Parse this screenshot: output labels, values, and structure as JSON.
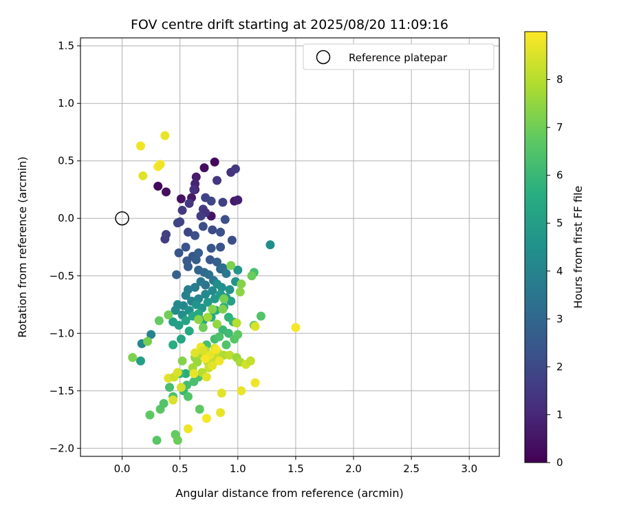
{
  "chart_data": {
    "type": "scatter",
    "title": "FOV centre drift starting at 2025/08/20 11:09:16",
    "xlabel": "Angular distance from reference (arcmin)",
    "ylabel": "Rotation from reference (arcmin)",
    "xlim": [
      -0.36,
      3.26
    ],
    "ylim": [
      -2.07,
      1.57
    ],
    "xticks": [
      0.0,
      0.5,
      1.0,
      1.5,
      2.0,
      2.5,
      3.0
    ],
    "xtick_labels": [
      "0.0",
      "0.5",
      "1.0",
      "1.5",
      "2.0",
      "2.5",
      "3.0"
    ],
    "yticks": [
      -2.0,
      -1.5,
      -1.0,
      -0.5,
      0.0,
      0.5,
      1.0,
      1.5
    ],
    "ytick_labels": [
      "−2.0",
      "−1.5",
      "−1.0",
      "−0.5",
      "0.0",
      "0.5",
      "1.0",
      "1.5"
    ],
    "grid": true,
    "legend": {
      "position": "top-right",
      "entries": [
        "Reference platepar"
      ]
    },
    "reference_point": {
      "x": 0.0,
      "y": 0.0
    },
    "colorbar": {
      "label": "Hours from first FF file",
      "range": [
        0,
        9
      ],
      "ticks": [
        0,
        1,
        2,
        3,
        4,
        5,
        6,
        7,
        8
      ],
      "tick_labels": [
        "0",
        "1",
        "2",
        "3",
        "4",
        "5",
        "6",
        "7",
        "8"
      ],
      "colormap": "viridis"
    },
    "points": [
      {
        "x": 0.31,
        "y": 0.28,
        "t": 0.2
      },
      {
        "x": 0.38,
        "y": 0.23,
        "t": 0.3
      },
      {
        "x": 0.71,
        "y": 0.44,
        "t": 0.3
      },
      {
        "x": 0.8,
        "y": 0.49,
        "t": 0.2
      },
      {
        "x": 0.51,
        "y": 0.17,
        "t": 0.4
      },
      {
        "x": 0.6,
        "y": 0.18,
        "t": 0.6
      },
      {
        "x": 0.63,
        "y": 0.25,
        "t": 0.5
      },
      {
        "x": 0.64,
        "y": 0.36,
        "t": 0.7
      },
      {
        "x": 0.77,
        "y": 0.02,
        "t": 0.5
      },
      {
        "x": 0.97,
        "y": 0.15,
        "t": 0.6
      },
      {
        "x": 1.0,
        "y": 0.16,
        "t": 0.8
      },
      {
        "x": 0.63,
        "y": 0.3,
        "t": 0.9
      },
      {
        "x": 0.94,
        "y": 0.4,
        "t": 1.3
      },
      {
        "x": 0.98,
        "y": 0.43,
        "t": 1.5
      },
      {
        "x": 0.82,
        "y": 0.33,
        "t": 1.4
      },
      {
        "x": 0.62,
        "y": 0.25,
        "t": 1.2
      },
      {
        "x": 0.58,
        "y": 0.13,
        "t": 1.4
      },
      {
        "x": 0.52,
        "y": 0.07,
        "t": 1.5
      },
      {
        "x": 0.7,
        "y": 0.08,
        "t": 1.6
      },
      {
        "x": 0.72,
        "y": 0.05,
        "t": 1.3
      },
      {
        "x": 0.68,
        "y": 0.02,
        "t": 1.6
      },
      {
        "x": 0.72,
        "y": 0.18,
        "t": 1.8
      },
      {
        "x": 0.77,
        "y": 0.15,
        "t": 1.9
      },
      {
        "x": 0.87,
        "y": 0.14,
        "t": 1.7
      },
      {
        "x": 0.5,
        "y": -0.03,
        "t": 1.9
      },
      {
        "x": 0.48,
        "y": -0.04,
        "t": 1.8
      },
      {
        "x": 0.37,
        "y": -0.18,
        "t": 1.6
      },
      {
        "x": 0.38,
        "y": -0.14,
        "t": 1.7
      },
      {
        "x": 0.57,
        "y": -0.12,
        "t": 1.9
      },
      {
        "x": 0.7,
        "y": -0.07,
        "t": 2.1
      },
      {
        "x": 0.78,
        "y": -0.1,
        "t": 2.0
      },
      {
        "x": 0.85,
        "y": -0.12,
        "t": 2.2
      },
      {
        "x": 0.89,
        "y": -0.01,
        "t": 2.2
      },
      {
        "x": 0.63,
        "y": -0.15,
        "t": 2.2
      },
      {
        "x": 0.95,
        "y": -0.19,
        "t": 2.1
      },
      {
        "x": 0.85,
        "y": -0.25,
        "t": 2.3
      },
      {
        "x": 0.77,
        "y": -0.26,
        "t": 2.4
      },
      {
        "x": 0.55,
        "y": -0.25,
        "t": 2.3
      },
      {
        "x": 0.49,
        "y": -0.3,
        "t": 2.4
      },
      {
        "x": 0.56,
        "y": -0.37,
        "t": 2.5
      },
      {
        "x": 0.57,
        "y": -0.42,
        "t": 2.6
      },
      {
        "x": 0.61,
        "y": -0.33,
        "t": 2.4
      },
      {
        "x": 0.64,
        "y": -0.36,
        "t": 2.6
      },
      {
        "x": 0.66,
        "y": -0.3,
        "t": 2.7
      },
      {
        "x": 0.76,
        "y": -0.36,
        "t": 2.5
      },
      {
        "x": 0.82,
        "y": -0.38,
        "t": 2.7
      },
      {
        "x": 0.85,
        "y": -0.44,
        "t": 3.0
      },
      {
        "x": 0.66,
        "y": -0.45,
        "t": 2.9
      },
      {
        "x": 0.47,
        "y": -0.49,
        "t": 2.8
      },
      {
        "x": 0.71,
        "y": -0.47,
        "t": 3.1
      },
      {
        "x": 0.75,
        "y": -0.49,
        "t": 3.3
      },
      {
        "x": 0.79,
        "y": -0.54,
        "t": 3.5
      },
      {
        "x": 0.87,
        "y": -0.43,
        "t": 3.2
      },
      {
        "x": 0.9,
        "y": -0.48,
        "t": 3.6
      },
      {
        "x": 0.72,
        "y": -0.58,
        "t": 3.4
      },
      {
        "x": 0.68,
        "y": -0.55,
        "t": 3.6
      },
      {
        "x": 0.63,
        "y": -0.6,
        "t": 3.7
      },
      {
        "x": 0.57,
        "y": -0.62,
        "t": 3.8
      },
      {
        "x": 0.55,
        "y": -0.67,
        "t": 3.9
      },
      {
        "x": 0.6,
        "y": -0.72,
        "t": 4.0
      },
      {
        "x": 0.66,
        "y": -0.7,
        "t": 4.1
      },
      {
        "x": 0.72,
        "y": -0.66,
        "t": 4.2
      },
      {
        "x": 0.78,
        "y": -0.63,
        "t": 4.3
      },
      {
        "x": 0.82,
        "y": -0.57,
        "t": 4.4
      },
      {
        "x": 0.86,
        "y": -0.6,
        "t": 4.5
      },
      {
        "x": 0.93,
        "y": -0.62,
        "t": 4.6
      },
      {
        "x": 0.98,
        "y": -0.55,
        "t": 4.6
      },
      {
        "x": 1.0,
        "y": -0.45,
        "t": 4.7
      },
      {
        "x": 0.53,
        "y": -0.76,
        "t": 4.1
      },
      {
        "x": 0.48,
        "y": -0.75,
        "t": 4.2
      },
      {
        "x": 0.46,
        "y": -0.8,
        "t": 4.3
      },
      {
        "x": 0.52,
        "y": -0.84,
        "t": 4.4
      },
      {
        "x": 0.58,
        "y": -0.8,
        "t": 4.5
      },
      {
        "x": 0.64,
        "y": -0.75,
        "t": 4.6
      },
      {
        "x": 0.69,
        "y": -0.78,
        "t": 4.7
      },
      {
        "x": 0.74,
        "y": -0.73,
        "t": 4.8
      },
      {
        "x": 0.8,
        "y": -0.7,
        "t": 4.8
      },
      {
        "x": 0.85,
        "y": -0.66,
        "t": 4.9
      },
      {
        "x": 0.9,
        "y": -0.69,
        "t": 5.0
      },
      {
        "x": 0.94,
        "y": -0.72,
        "t": 5.1
      },
      {
        "x": 1.28,
        "y": -0.23,
        "t": 4.4
      },
      {
        "x": 0.17,
        "y": -1.09,
        "t": 4.2
      },
      {
        "x": 0.25,
        "y": -1.01,
        "t": 4.0
      },
      {
        "x": 0.16,
        "y": -1.24,
        "t": 5.0
      },
      {
        "x": 0.44,
        "y": -0.9,
        "t": 5.0
      },
      {
        "x": 0.49,
        "y": -0.93,
        "t": 5.1
      },
      {
        "x": 0.55,
        "y": -0.89,
        "t": 5.2
      },
      {
        "x": 0.61,
        "y": -0.85,
        "t": 5.3
      },
      {
        "x": 0.66,
        "y": -0.83,
        "t": 5.4
      },
      {
        "x": 0.7,
        "y": -0.89,
        "t": 5.4
      },
      {
        "x": 0.77,
        "y": -0.86,
        "t": 5.5
      },
      {
        "x": 0.81,
        "y": -0.8,
        "t": 5.6
      },
      {
        "x": 0.88,
        "y": -0.77,
        "t": 5.7
      },
      {
        "x": 0.92,
        "y": -0.86,
        "t": 5.8
      },
      {
        "x": 0.96,
        "y": -0.9,
        "t": 5.9
      },
      {
        "x": 0.87,
        "y": -0.97,
        "t": 6.0
      },
      {
        "x": 0.58,
        "y": -0.98,
        "t": 5.4
      },
      {
        "x": 0.51,
        "y": -1.05,
        "t": 5.3
      },
      {
        "x": 0.44,
        "y": -1.1,
        "t": 5.6
      },
      {
        "x": 0.55,
        "y": -1.35,
        "t": 5.6
      },
      {
        "x": 0.5,
        "y": -1.35,
        "t": 5.9
      },
      {
        "x": 0.53,
        "y": -1.5,
        "t": 6.0
      },
      {
        "x": 0.41,
        "y": -1.47,
        "t": 6.3
      },
      {
        "x": 0.44,
        "y": -1.55,
        "t": 6.4
      },
      {
        "x": 0.56,
        "y": -1.45,
        "t": 6.2
      },
      {
        "x": 0.62,
        "y": -1.42,
        "t": 6.3
      },
      {
        "x": 0.66,
        "y": -1.38,
        "t": 6.4
      },
      {
        "x": 0.57,
        "y": -1.55,
        "t": 6.5
      },
      {
        "x": 0.33,
        "y": -1.66,
        "t": 6.6
      },
      {
        "x": 0.36,
        "y": -1.61,
        "t": 6.5
      },
      {
        "x": 0.24,
        "y": -1.71,
        "t": 6.7
      },
      {
        "x": 0.3,
        "y": -1.93,
        "t": 6.6
      },
      {
        "x": 0.46,
        "y": -1.88,
        "t": 6.8
      },
      {
        "x": 0.48,
        "y": -1.93,
        "t": 6.9
      },
      {
        "x": 0.67,
        "y": -1.66,
        "t": 6.7
      },
      {
        "x": 0.92,
        "y": -1.0,
        "t": 6.1
      },
      {
        "x": 0.8,
        "y": -1.05,
        "t": 6.2
      },
      {
        "x": 0.73,
        "y": -1.1,
        "t": 6.3
      },
      {
        "x": 0.84,
        "y": -1.03,
        "t": 6.4
      },
      {
        "x": 0.9,
        "y": -1.1,
        "t": 6.5
      },
      {
        "x": 0.97,
        "y": -1.05,
        "t": 6.6
      },
      {
        "x": 1.0,
        "y": -1.01,
        "t": 6.7
      },
      {
        "x": 1.14,
        "y": -0.93,
        "t": 6.8
      },
      {
        "x": 1.2,
        "y": -0.85,
        "t": 6.5
      },
      {
        "x": 1.14,
        "y": -0.47,
        "t": 6.3
      },
      {
        "x": 1.12,
        "y": -0.5,
        "t": 6.9
      },
      {
        "x": 1.03,
        "y": -0.57,
        "t": 7.3
      },
      {
        "x": 1.02,
        "y": -0.64,
        "t": 7.4
      },
      {
        "x": 0.94,
        "y": -0.41,
        "t": 7.2
      },
      {
        "x": 0.88,
        "y": -0.7,
        "t": 7.1
      },
      {
        "x": 0.32,
        "y": -0.89,
        "t": 6.8
      },
      {
        "x": 0.4,
        "y": -0.84,
        "t": 7.0
      },
      {
        "x": 0.22,
        "y": -1.07,
        "t": 7.1
      },
      {
        "x": 0.09,
        "y": -1.21,
        "t": 7.2
      },
      {
        "x": 0.52,
        "y": -1.24,
        "t": 7.3
      },
      {
        "x": 0.63,
        "y": -1.21,
        "t": 7.5
      },
      {
        "x": 0.65,
        "y": -1.25,
        "t": 7.6
      },
      {
        "x": 0.61,
        "y": -1.3,
        "t": 7.7
      },
      {
        "x": 0.67,
        "y": -1.18,
        "t": 7.8
      },
      {
        "x": 0.72,
        "y": -1.15,
        "t": 7.9
      },
      {
        "x": 0.74,
        "y": -1.25,
        "t": 8.0
      },
      {
        "x": 0.79,
        "y": -1.22,
        "t": 8.1
      },
      {
        "x": 0.83,
        "y": -1.17,
        "t": 8.2
      },
      {
        "x": 0.8,
        "y": -1.13,
        "t": 8.3
      },
      {
        "x": 0.75,
        "y": -1.3,
        "t": 8.3
      },
      {
        "x": 0.69,
        "y": -1.34,
        "t": 8.0
      },
      {
        "x": 0.88,
        "y": -1.19,
        "t": 7.9
      },
      {
        "x": 0.93,
        "y": -1.19,
        "t": 8.1
      },
      {
        "x": 0.99,
        "y": -1.21,
        "t": 7.6
      },
      {
        "x": 1.02,
        "y": -1.25,
        "t": 7.8
      },
      {
        "x": 1.07,
        "y": -1.27,
        "t": 8.4
      },
      {
        "x": 1.11,
        "y": -1.24,
        "t": 8.2
      },
      {
        "x": 1.15,
        "y": -0.94,
        "t": 8.5
      },
      {
        "x": 0.99,
        "y": -0.91,
        "t": 8.0
      },
      {
        "x": 0.66,
        "y": -0.88,
        "t": 7.4
      },
      {
        "x": 0.74,
        "y": -0.86,
        "t": 7.7
      },
      {
        "x": 0.82,
        "y": -0.92,
        "t": 7.5
      },
      {
        "x": 0.87,
        "y": -0.79,
        "t": 7.2
      },
      {
        "x": 0.78,
        "y": -0.79,
        "t": 7.3
      },
      {
        "x": 0.7,
        "y": -0.95,
        "t": 7.0
      },
      {
        "x": 0.16,
        "y": 0.63,
        "t": 8.8
      },
      {
        "x": 0.37,
        "y": 0.72,
        "t": 8.7
      },
      {
        "x": 0.18,
        "y": 0.37,
        "t": 8.6
      },
      {
        "x": 0.31,
        "y": 0.45,
        "t": 8.9
      },
      {
        "x": 0.33,
        "y": 0.47,
        "t": 8.8
      },
      {
        "x": 1.5,
        "y": -0.95,
        "t": 8.9
      },
      {
        "x": 1.15,
        "y": -1.43,
        "t": 8.8
      },
      {
        "x": 1.03,
        "y": -1.5,
        "t": 8.7
      },
      {
        "x": 0.86,
        "y": -1.52,
        "t": 8.6
      },
      {
        "x": 0.85,
        "y": -1.69,
        "t": 8.7
      },
      {
        "x": 0.73,
        "y": -1.74,
        "t": 8.9
      },
      {
        "x": 0.57,
        "y": -1.83,
        "t": 8.8
      },
      {
        "x": 0.44,
        "y": -1.58,
        "t": 8.5
      },
      {
        "x": 0.51,
        "y": -1.47,
        "t": 8.4
      },
      {
        "x": 0.4,
        "y": -1.39,
        "t": 8.6
      },
      {
        "x": 0.45,
        "y": -1.38,
        "t": 8.3
      },
      {
        "x": 0.48,
        "y": -1.34,
        "t": 8.5
      },
      {
        "x": 0.62,
        "y": -1.35,
        "t": 8.7
      },
      {
        "x": 0.73,
        "y": -1.38,
        "t": 8.6
      },
      {
        "x": 0.63,
        "y": -1.17,
        "t": 8.6
      },
      {
        "x": 0.68,
        "y": -1.12,
        "t": 8.8
      },
      {
        "x": 0.76,
        "y": -1.19,
        "t": 8.7
      },
      {
        "x": 0.72,
        "y": -1.22,
        "t": 8.9
      },
      {
        "x": 0.78,
        "y": -1.28,
        "t": 8.6
      },
      {
        "x": 0.84,
        "y": -1.24,
        "t": 8.8
      },
      {
        "x": 0.7,
        "y": -1.15,
        "t": 8.5
      },
      {
        "x": 0.81,
        "y": -1.14,
        "t": 8.9
      }
    ]
  }
}
